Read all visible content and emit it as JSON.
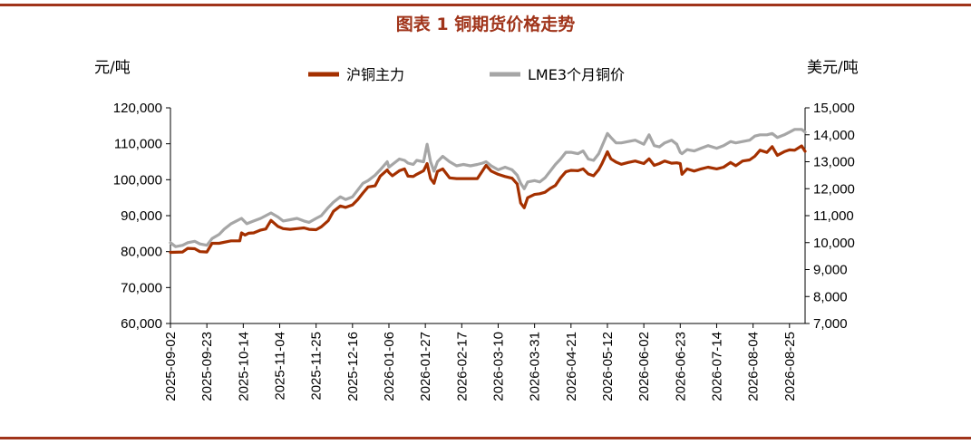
{
  "colors": {
    "rule": "#a0341a",
    "title": "#a0341a",
    "shfe": "#a43000",
    "lme": "#a6a6a6",
    "axis": "#000000"
  },
  "chart_data": {
    "type": "line",
    "title": "图表 1  铜期货价格走势",
    "ylabel_left": "元/吨",
    "ylabel_right": "美元/吨",
    "ylim_left": [
      60000,
      120000
    ],
    "ylim_right": [
      7000,
      15000
    ],
    "yticks_left": [
      "60,000",
      "70,000",
      "80,000",
      "90,000",
      "100,000",
      "110,000",
      "120,000"
    ],
    "yticks_right": [
      "7,000",
      "8,000",
      "9,000",
      "10,000",
      "11,000",
      "12,000",
      "13,000",
      "14,000",
      "15,000"
    ],
    "xticks": [
      "2025-09-02",
      "2025-09-23",
      "2025-10-14",
      "2025-11-04",
      "2025-11-25",
      "2025-12-16",
      "2026-01-06",
      "2026-01-27",
      "2026-02-17",
      "2026-03-10",
      "2026-03-31",
      "2026-04-21",
      "2026-05-12",
      "2026-06-02",
      "2026-06-23",
      "2026-07-14",
      "2026-08-04",
      "2026-08-25"
    ],
    "x_end": "2026-09-03",
    "legend_position": "top-center",
    "grid": false,
    "series": [
      {
        "name": "沪铜主力",
        "axis": "left",
        "points": [
          [
            "2025-09-02",
            79800
          ],
          [
            "2025-09-09",
            79900
          ],
          [
            "2025-09-12",
            80900
          ],
          [
            "2025-09-16",
            80800
          ],
          [
            "2025-09-19",
            80000
          ],
          [
            "2025-09-23",
            79900
          ],
          [
            "2025-09-26",
            82300
          ],
          [
            "2025-09-30",
            82300
          ],
          [
            "2025-10-07",
            83000
          ],
          [
            "2025-10-12",
            83000
          ],
          [
            "2025-10-13",
            85200
          ],
          [
            "2025-10-15",
            84600
          ],
          [
            "2025-10-17",
            85100
          ],
          [
            "2025-10-20",
            85200
          ],
          [
            "2025-10-24",
            86000
          ],
          [
            "2025-10-27",
            86300
          ],
          [
            "2025-10-30",
            88700
          ],
          [
            "2025-11-03",
            87000
          ],
          [
            "2025-11-06",
            86400
          ],
          [
            "2025-11-10",
            86200
          ],
          [
            "2025-11-14",
            86400
          ],
          [
            "2025-11-18",
            86600
          ],
          [
            "2025-11-21",
            86200
          ],
          [
            "2025-11-25",
            86100
          ],
          [
            "2025-11-28",
            86900
          ],
          [
            "2025-12-02",
            88600
          ],
          [
            "2025-12-05",
            91200
          ],
          [
            "2025-12-09",
            92700
          ],
          [
            "2025-12-12",
            92300
          ],
          [
            "2025-12-16",
            93000
          ],
          [
            "2025-12-19",
            94500
          ],
          [
            "2025-12-22",
            96300
          ],
          [
            "2025-12-25",
            98000
          ],
          [
            "2025-12-29",
            98300
          ],
          [
            "2026-01-01",
            101000
          ],
          [
            "2026-01-05",
            102700
          ],
          [
            "2026-01-06",
            102000
          ],
          [
            "2026-01-08",
            101100
          ],
          [
            "2026-01-12",
            102500
          ],
          [
            "2026-01-15",
            103000
          ],
          [
            "2026-01-17",
            101000
          ],
          [
            "2026-01-20",
            100900
          ],
          [
            "2026-01-22",
            101500
          ],
          [
            "2026-01-26",
            102500
          ],
          [
            "2026-01-28",
            104500
          ],
          [
            "2026-01-30",
            100300
          ],
          [
            "2026-02-01",
            99000
          ],
          [
            "2026-02-03",
            102300
          ],
          [
            "2026-02-06",
            103000
          ],
          [
            "2026-02-10",
            100500
          ],
          [
            "2026-02-14",
            100300
          ],
          [
            "2026-02-18",
            100300
          ],
          [
            "2026-02-22",
            100300
          ],
          [
            "2026-02-26",
            100300
          ],
          [
            "2026-03-01",
            102500
          ],
          [
            "2026-03-03",
            104000
          ],
          [
            "2026-03-06",
            102400
          ],
          [
            "2026-03-10",
            101500
          ],
          [
            "2026-03-14",
            100900
          ],
          [
            "2026-03-18",
            100400
          ],
          [
            "2026-03-21",
            98800
          ],
          [
            "2026-03-23",
            93500
          ],
          [
            "2026-03-25",
            92200
          ],
          [
            "2026-03-27",
            95000
          ],
          [
            "2026-03-31",
            95900
          ],
          [
            "2026-04-03",
            96100
          ],
          [
            "2026-04-06",
            96500
          ],
          [
            "2026-04-09",
            97600
          ],
          [
            "2026-04-12",
            98400
          ],
          [
            "2026-04-15",
            100500
          ],
          [
            "2026-04-18",
            102200
          ],
          [
            "2026-04-21",
            102600
          ],
          [
            "2026-04-25",
            102500
          ],
          [
            "2026-04-28",
            103000
          ],
          [
            "2026-05-01",
            101600
          ],
          [
            "2026-05-04",
            101100
          ],
          [
            "2026-05-07",
            102800
          ],
          [
            "2026-05-09",
            104600
          ],
          [
            "2026-05-12",
            107800
          ],
          [
            "2026-05-14",
            105800
          ],
          [
            "2026-05-17",
            104900
          ],
          [
            "2026-05-20",
            104300
          ],
          [
            "2026-05-24",
            104800
          ],
          [
            "2026-05-28",
            105200
          ],
          [
            "2026-06-02",
            104500
          ],
          [
            "2026-06-05",
            105800
          ],
          [
            "2026-06-08",
            104000
          ],
          [
            "2026-06-11",
            104500
          ],
          [
            "2026-06-14",
            105200
          ],
          [
            "2026-06-18",
            104600
          ],
          [
            "2026-06-21",
            104700
          ],
          [
            "2026-06-23",
            104500
          ],
          [
            "2026-06-24",
            101500
          ],
          [
            "2026-06-27",
            103000
          ],
          [
            "2026-07-01",
            102400
          ],
          [
            "2026-07-05",
            103000
          ],
          [
            "2026-07-09",
            103500
          ],
          [
            "2026-07-14",
            103000
          ],
          [
            "2026-07-18",
            103500
          ],
          [
            "2026-07-22",
            104800
          ],
          [
            "2026-07-25",
            103900
          ],
          [
            "2026-07-29",
            105200
          ],
          [
            "2026-08-02",
            105500
          ],
          [
            "2026-08-05",
            106500
          ],
          [
            "2026-08-08",
            108200
          ],
          [
            "2026-08-12",
            107600
          ],
          [
            "2026-08-15",
            109200
          ],
          [
            "2026-08-18",
            106800
          ],
          [
            "2026-08-22",
            107800
          ],
          [
            "2026-08-25",
            108300
          ],
          [
            "2026-08-28",
            108200
          ],
          [
            "2026-09-01",
            109400
          ],
          [
            "2026-09-03",
            107900
          ]
        ]
      },
      {
        "name": "LME3个月铜价",
        "axis": "right",
        "points": [
          [
            "2025-09-02",
            10000
          ],
          [
            "2025-09-05",
            9850
          ],
          [
            "2025-09-09",
            9900
          ],
          [
            "2025-09-12",
            10000
          ],
          [
            "2025-09-16",
            10050
          ],
          [
            "2025-09-19",
            9950
          ],
          [
            "2025-09-23",
            9900
          ],
          [
            "2025-09-26",
            10150
          ],
          [
            "2025-09-30",
            10300
          ],
          [
            "2025-10-03",
            10500
          ],
          [
            "2025-10-07",
            10700
          ],
          [
            "2025-10-10",
            10800
          ],
          [
            "2025-10-13",
            10900
          ],
          [
            "2025-10-16",
            10700
          ],
          [
            "2025-10-20",
            10800
          ],
          [
            "2025-10-24",
            10900
          ],
          [
            "2025-10-27",
            11000
          ],
          [
            "2025-10-30",
            11100
          ],
          [
            "2025-11-03",
            10950
          ],
          [
            "2025-11-06",
            10800
          ],
          [
            "2025-11-10",
            10850
          ],
          [
            "2025-11-14",
            10900
          ],
          [
            "2025-11-18",
            10800
          ],
          [
            "2025-11-21",
            10750
          ],
          [
            "2025-11-25",
            10900
          ],
          [
            "2025-11-28",
            11000
          ],
          [
            "2025-12-02",
            11300
          ],
          [
            "2025-12-05",
            11500
          ],
          [
            "2025-12-09",
            11700
          ],
          [
            "2025-12-12",
            11600
          ],
          [
            "2025-12-16",
            11700
          ],
          [
            "2025-12-19",
            11950
          ],
          [
            "2025-12-22",
            12200
          ],
          [
            "2025-12-25",
            12300
          ],
          [
            "2025-12-29",
            12500
          ],
          [
            "2026-01-01",
            12700
          ],
          [
            "2026-01-05",
            13000
          ],
          [
            "2026-01-06",
            12800
          ],
          [
            "2026-01-08",
            12900
          ],
          [
            "2026-01-12",
            13100
          ],
          [
            "2026-01-15",
            13050
          ],
          [
            "2026-01-17",
            12950
          ],
          [
            "2026-01-20",
            12900
          ],
          [
            "2026-01-22",
            13050
          ],
          [
            "2026-01-26",
            13000
          ],
          [
            "2026-01-28",
            13650
          ],
          [
            "2026-01-30",
            13000
          ],
          [
            "2026-02-01",
            12650
          ],
          [
            "2026-02-03",
            13000
          ],
          [
            "2026-02-06",
            13200
          ],
          [
            "2026-02-10",
            13000
          ],
          [
            "2026-02-14",
            12850
          ],
          [
            "2026-02-18",
            12900
          ],
          [
            "2026-02-22",
            12850
          ],
          [
            "2026-02-26",
            12900
          ],
          [
            "2026-03-01",
            12950
          ],
          [
            "2026-03-03",
            13000
          ],
          [
            "2026-03-06",
            12850
          ],
          [
            "2026-03-10",
            12700
          ],
          [
            "2026-03-14",
            12800
          ],
          [
            "2026-03-18",
            12700
          ],
          [
            "2026-03-21",
            12500
          ],
          [
            "2026-03-23",
            12200
          ],
          [
            "2026-03-25",
            12000
          ],
          [
            "2026-03-27",
            12250
          ],
          [
            "2026-03-31",
            12300
          ],
          [
            "2026-04-03",
            12250
          ],
          [
            "2026-04-06",
            12400
          ],
          [
            "2026-04-09",
            12650
          ],
          [
            "2026-04-12",
            12900
          ],
          [
            "2026-04-15",
            13100
          ],
          [
            "2026-04-18",
            13350
          ],
          [
            "2026-04-21",
            13350
          ],
          [
            "2026-04-25",
            13300
          ],
          [
            "2026-04-28",
            13400
          ],
          [
            "2026-05-01",
            13100
          ],
          [
            "2026-05-04",
            13050
          ],
          [
            "2026-05-07",
            13300
          ],
          [
            "2026-05-09",
            13600
          ],
          [
            "2026-05-12",
            14050
          ],
          [
            "2026-05-14",
            13900
          ],
          [
            "2026-05-17",
            13700
          ],
          [
            "2026-05-20",
            13700
          ],
          [
            "2026-05-24",
            13750
          ],
          [
            "2026-05-28",
            13800
          ],
          [
            "2026-06-02",
            13650
          ],
          [
            "2026-06-05",
            14000
          ],
          [
            "2026-06-08",
            13600
          ],
          [
            "2026-06-11",
            13550
          ],
          [
            "2026-06-14",
            13700
          ],
          [
            "2026-06-18",
            13800
          ],
          [
            "2026-06-21",
            13650
          ],
          [
            "2026-06-23",
            13350
          ],
          [
            "2026-06-24",
            13300
          ],
          [
            "2026-06-27",
            13450
          ],
          [
            "2026-07-01",
            13400
          ],
          [
            "2026-07-05",
            13500
          ],
          [
            "2026-07-09",
            13600
          ],
          [
            "2026-07-14",
            13500
          ],
          [
            "2026-07-18",
            13600
          ],
          [
            "2026-07-22",
            13750
          ],
          [
            "2026-07-25",
            13700
          ],
          [
            "2026-07-29",
            13750
          ],
          [
            "2026-08-02",
            13800
          ],
          [
            "2026-08-05",
            13950
          ],
          [
            "2026-08-08",
            14000
          ],
          [
            "2026-08-12",
            14000
          ],
          [
            "2026-08-15",
            14050
          ],
          [
            "2026-08-18",
            13900
          ],
          [
            "2026-08-22",
            14000
          ],
          [
            "2026-08-25",
            14100
          ],
          [
            "2026-08-28",
            14200
          ],
          [
            "2026-09-01",
            14200
          ],
          [
            "2026-09-03",
            14100
          ]
        ]
      }
    ]
  }
}
